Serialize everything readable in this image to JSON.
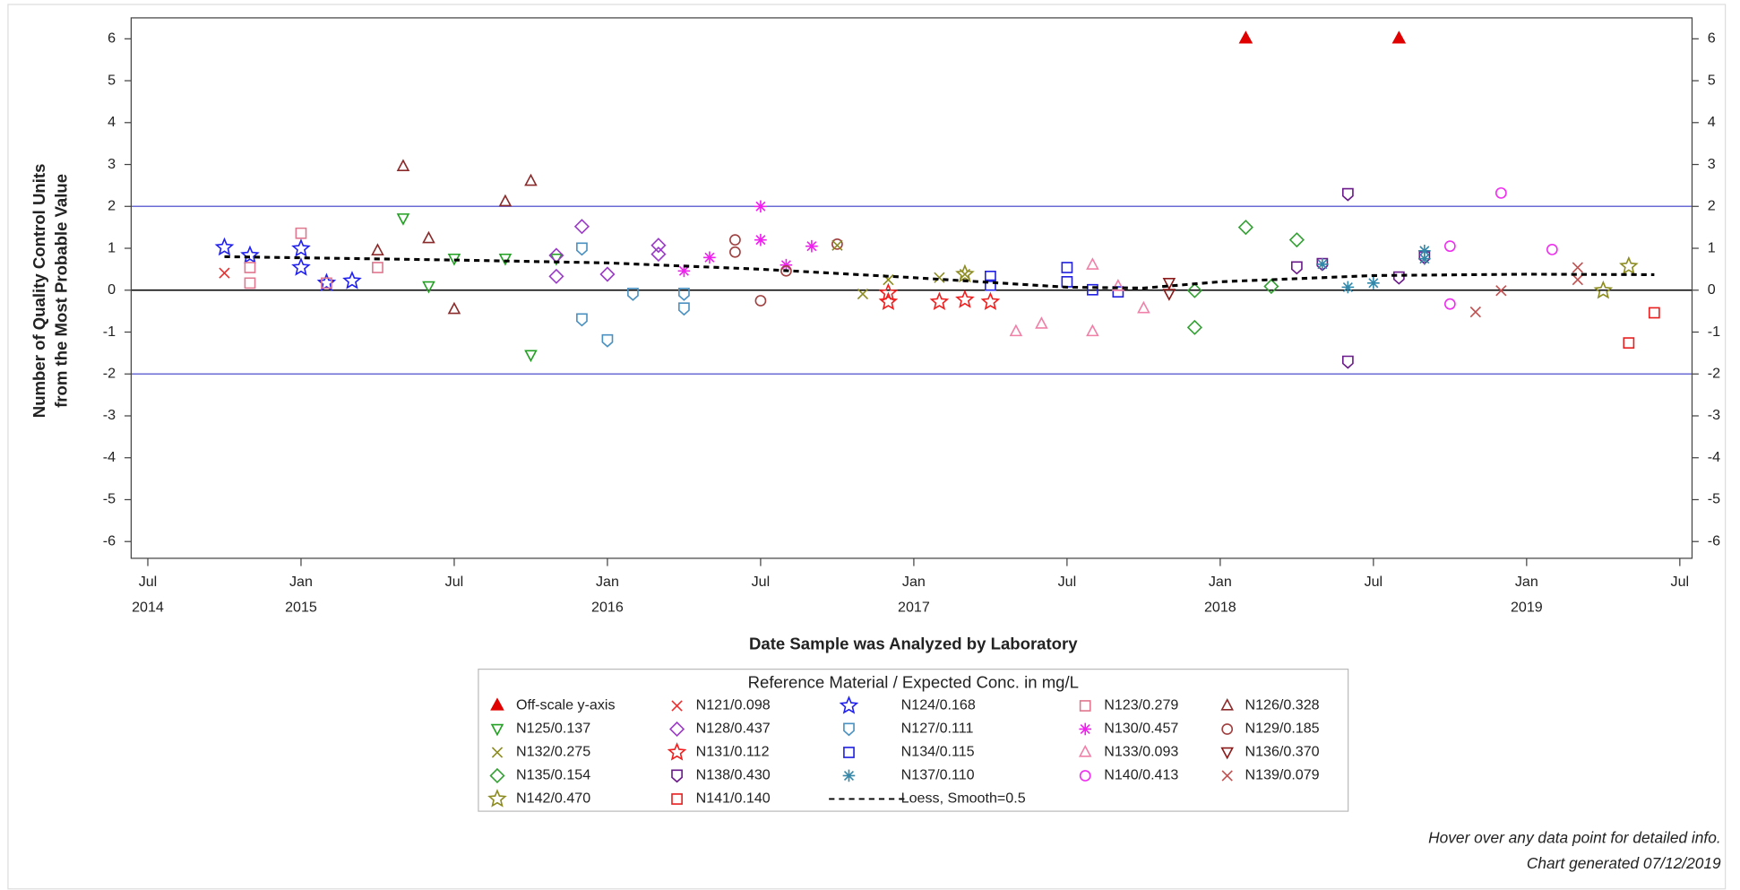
{
  "chart_data": {
    "type": "scatter",
    "xlabel": "Date Sample was Analyzed by Laboratory",
    "ylabel": [
      "Number of Quality Control Units",
      "from the Most Probable Value"
    ],
    "xlim": [
      "2014-06",
      "2019-08"
    ],
    "xticks": [
      {
        "value": "2014-07",
        "label": [
          "Jul",
          "2014"
        ]
      },
      {
        "value": "2015-01",
        "label": [
          "Jan",
          "2015"
        ]
      },
      {
        "value": "2015-07",
        "label": [
          "Jul"
        ]
      },
      {
        "value": "2016-01",
        "label": [
          "Jan",
          "2016"
        ]
      },
      {
        "value": "2016-07",
        "label": [
          "Jul"
        ]
      },
      {
        "value": "2017-01",
        "label": [
          "Jan",
          "2017"
        ]
      },
      {
        "value": "2017-07",
        "label": [
          "Jul"
        ]
      },
      {
        "value": "2018-01",
        "label": [
          "Jan",
          "2018"
        ]
      },
      {
        "value": "2018-07",
        "label": [
          "Jul"
        ]
      },
      {
        "value": "2019-01",
        "label": [
          "Jan",
          "2019"
        ]
      },
      {
        "value": "2019-07",
        "label": [
          "Jul"
        ]
      }
    ],
    "ylim": [
      -6.4,
      6.5
    ],
    "yticks": [
      -6,
      -5,
      -4,
      -3,
      -2,
      -1,
      0,
      1,
      2,
      3,
      4,
      5,
      6
    ],
    "y2lim": [
      -6.4,
      6.5
    ],
    "y2ticks": [
      -6,
      -5,
      -4,
      -3,
      -2,
      -1,
      0,
      1,
      2,
      3,
      4,
      5,
      6
    ],
    "reference_lines": [
      {
        "value": 2,
        "color": "#6b6bd6"
      },
      {
        "value": -2,
        "color": "#6b6bd6"
      },
      {
        "value": 0,
        "color": "#000000"
      }
    ],
    "legend_title": "Reference Material / Expected Conc. in mg/L",
    "legend_position": "bottom",
    "notes": [
      "Hover over any data point for detailed info.",
      "Chart generated 07/12/2019"
    ],
    "series": [
      {
        "name": "Off-scale y-axis",
        "color": "#e00000",
        "marker": "triangle-filled",
        "x": [
          "2018-02",
          "2018-08"
        ],
        "values": [
          6,
          6
        ]
      },
      {
        "name": "N121/0.098",
        "color": "#e83030",
        "marker": "x",
        "x": [
          "2014-10"
        ],
        "values": [
          0.41
        ]
      },
      {
        "name": "N124/0.168",
        "color": "#2222f0",
        "marker": "star",
        "x": [
          "2014-10",
          "2014-11",
          "2015-01",
          "2015-01",
          "2015-02",
          "2015-03"
        ],
        "values": [
          1.02,
          0.83,
          0.54,
          0.99,
          0.17,
          0.22
        ]
      },
      {
        "name": "N123/0.279",
        "color": "#e07890",
        "marker": "square",
        "x": [
          "2014-11",
          "2014-11",
          "2015-01",
          "2015-02",
          "2015-04"
        ],
        "values": [
          0.54,
          0.17,
          1.36,
          0.17,
          0.54
        ]
      },
      {
        "name": "N126/0.328",
        "color": "#8b2a2a",
        "marker": "triangle",
        "x": [
          "2015-04",
          "2015-05",
          "2015-06",
          "2015-07",
          "2015-09",
          "2015-10"
        ],
        "values": [
          0.94,
          2.95,
          1.23,
          -0.46,
          2.11,
          2.6
        ]
      },
      {
        "name": "N125/0.137",
        "color": "#22a022",
        "marker": "triangle-down",
        "x": [
          "2015-05",
          "2015-06",
          "2015-07",
          "2015-09",
          "2015-10",
          "2015-11"
        ],
        "values": [
          1.71,
          0.09,
          0.75,
          0.75,
          -1.55,
          0.75
        ]
      },
      {
        "name": "N128/0.437",
        "color": "#9a3ac8",
        "marker": "diamond",
        "x": [
          "2015-11",
          "2015-11",
          "2015-12",
          "2016-01",
          "2016-03",
          "2016-03"
        ],
        "values": [
          0.83,
          0.33,
          1.52,
          0.38,
          1.07,
          0.86
        ]
      },
      {
        "name": "N127/0.111",
        "color": "#4a90c0",
        "marker": "shield",
        "x": [
          "2015-12",
          "2015-12",
          "2016-01",
          "2016-02",
          "2016-04",
          "2016-04"
        ],
        "values": [
          0.99,
          -0.7,
          -1.2,
          -0.09,
          -0.09,
          -0.44
        ]
      },
      {
        "name": "N130/0.457",
        "color": "#f020f0",
        "marker": "asterisk",
        "x": [
          "2016-04",
          "2016-05",
          "2016-07",
          "2016-07",
          "2016-08",
          "2016-09"
        ],
        "values": [
          0.46,
          0.78,
          1.2,
          2.0,
          0.6,
          1.05
        ]
      },
      {
        "name": "N129/0.185",
        "color": "#a04040",
        "marker": "circle",
        "x": [
          "2016-06",
          "2016-06",
          "2016-07",
          "2016-08",
          "2016-10"
        ],
        "values": [
          1.2,
          0.91,
          -0.25,
          0.46,
          1.1
        ]
      },
      {
        "name": "N132/0.275",
        "color": "#8c8c22",
        "marker": "x",
        "x": [
          "2016-10",
          "2016-11",
          "2016-12",
          "2017-02",
          "2017-03"
        ],
        "values": [
          1.07,
          -0.09,
          0.25,
          0.3,
          0.38
        ]
      },
      {
        "name": "N131/0.112",
        "color": "#f02020",
        "marker": "star",
        "x": [
          "2016-12",
          "2016-12",
          "2017-02",
          "2017-03",
          "2017-04"
        ],
        "values": [
          -0.07,
          -0.28,
          -0.28,
          -0.23,
          -0.28
        ]
      },
      {
        "name": "N134/0.115",
        "color": "#2222e0",
        "marker": "square",
        "x": [
          "2017-04",
          "2017-04",
          "2017-07",
          "2017-07",
          "2017-08",
          "2017-09"
        ],
        "values": [
          0.33,
          0.12,
          0.54,
          0.2,
          0.01,
          -0.04
        ]
      },
      {
        "name": "N133/0.093",
        "color": "#f080a8",
        "marker": "triangle",
        "x": [
          "2017-05",
          "2017-06",
          "2017-08",
          "2017-08",
          "2017-09",
          "2017-10"
        ],
        "values": [
          -0.99,
          -0.81,
          0.6,
          -0.99,
          0.09,
          -0.44
        ]
      },
      {
        "name": "N136/0.370",
        "color": "#8b1a1a",
        "marker": "triangle-down",
        "x": [
          "2017-11",
          "2017-11"
        ],
        "values": [
          0.17,
          -0.09
        ]
      },
      {
        "name": "N135/0.154",
        "color": "#33a033",
        "marker": "diamond",
        "x": [
          "2017-12",
          "2017-12",
          "2018-02",
          "2018-03",
          "2018-04"
        ],
        "values": [
          -0.89,
          -0.01,
          1.5,
          0.09,
          1.2
        ]
      },
      {
        "name": "N138/0.430",
        "color": "#6a1a8a",
        "marker": "shield",
        "x": [
          "2018-04",
          "2018-05",
          "2018-06",
          "2018-06",
          "2018-08",
          "2018-09"
        ],
        "values": [
          0.54,
          0.62,
          -1.71,
          2.29,
          0.3,
          0.78
        ]
      },
      {
        "name": "N137/0.110",
        "color": "#3388aa",
        "marker": "asterisk",
        "x": [
          "2018-05",
          "2018-06",
          "2018-07",
          "2018-09",
          "2018-09"
        ],
        "values": [
          0.62,
          0.07,
          0.17,
          0.75,
          0.94
        ]
      },
      {
        "name": "N140/0.413",
        "color": "#f030f0",
        "marker": "circle",
        "x": [
          "2018-10",
          "2018-10",
          "2018-12",
          "2019-02"
        ],
        "values": [
          -0.33,
          1.05,
          2.32,
          0.97
        ]
      },
      {
        "name": "N139/0.079",
        "color": "#c05050",
        "marker": "x",
        "x": [
          "2018-11",
          "2018-12",
          "2019-03",
          "2019-03"
        ],
        "values": [
          -0.52,
          -0.01,
          0.54,
          0.25
        ]
      },
      {
        "name": "N142/0.470",
        "color": "#8c8c22",
        "marker": "star",
        "x": [
          "2017-03",
          "2019-04",
          "2019-05"
        ],
        "values": [
          0.38,
          -0.01,
          0.57
        ]
      },
      {
        "name": "N141/0.140",
        "color": "#e82020",
        "marker": "square",
        "x": [
          "2019-05",
          "2019-06"
        ],
        "values": [
          -1.26,
          -0.54
        ]
      },
      {
        "name": "Loess, Smooth=0.5",
        "color": "#000000",
        "line": "dashed",
        "x": [
          "2014-10",
          "2015-07",
          "2016-01",
          "2016-07",
          "2017-01",
          "2017-07",
          "2017-10",
          "2018-01",
          "2018-07",
          "2019-01",
          "2019-06"
        ],
        "values": [
          0.8,
          0.72,
          0.65,
          0.5,
          0.3,
          0.07,
          0.05,
          0.2,
          0.35,
          0.38,
          0.37
        ]
      }
    ]
  }
}
